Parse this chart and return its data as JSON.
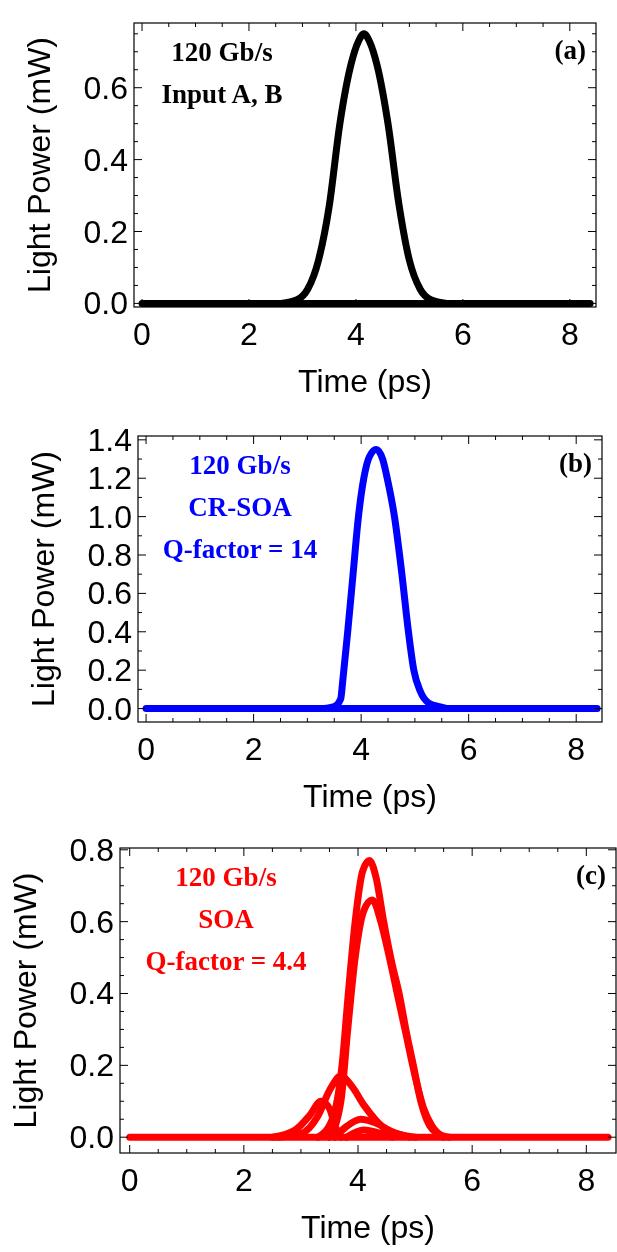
{
  "chart_data": [
    {
      "type": "line",
      "title": "(a)",
      "xlabel": "Time (ps)",
      "ylabel": "Light Power (mW)",
      "annotations": [
        "120 Gb/s",
        "Input A, B"
      ],
      "xlim": [
        -0.15,
        8.49
      ],
      "ylim": [
        -0.01,
        0.78
      ],
      "xticks": [
        0,
        {
          "value": 0.5,
          "label": null
        },
        {
          "value": 1,
          "label": null
        },
        {
          "value": 1.5,
          "label": null
        },
        2,
        {
          "value": 2.5,
          "label": null
        },
        {
          "value": 3,
          "label": null
        },
        {
          "value": 3.5,
          "label": null
        },
        4,
        {
          "value": 4.5,
          "label": null
        },
        {
          "value": 5,
          "label": null
        },
        {
          "value": 5.5,
          "label": null
        },
        6,
        {
          "value": 6.5,
          "label": null
        },
        {
          "value": 7,
          "label": null
        },
        {
          "value": 7.5,
          "label": null
        },
        8
      ],
      "yticks": [
        {
          "value": 0,
          "label": "0.0"
        },
        {
          "value": 0.05,
          "label": null
        },
        {
          "value": 0.1,
          "label": null
        },
        {
          "value": 0.15,
          "label": null
        },
        0.2,
        {
          "value": 0.25,
          "label": null
        },
        {
          "value": 0.3,
          "label": null
        },
        {
          "value": 0.35,
          "label": null
        },
        0.4,
        {
          "value": 0.45,
          "label": null
        },
        {
          "value": 0.5,
          "label": null
        },
        {
          "value": 0.55,
          "label": null
        },
        0.6,
        {
          "value": 0.65,
          "label": null
        },
        {
          "value": 0.7,
          "label": null
        },
        {
          "value": 0.75,
          "label": null
        }
      ],
      "series": [
        {
          "color": "#000000",
          "x": [
            0,
            8.38
          ],
          "values": [
            0,
            0
          ]
        },
        {
          "color": "#000000",
          "x": [
            2.6,
            2.9,
            3.1,
            3.3,
            3.5,
            3.7,
            3.9,
            4.05,
            4.15,
            4.25,
            4.4,
            4.6,
            4.8,
            5.0,
            5.2,
            5.4,
            5.7
          ],
          "values": [
            0,
            0.01,
            0.04,
            0.12,
            0.27,
            0.5,
            0.66,
            0.73,
            0.75,
            0.73,
            0.66,
            0.5,
            0.28,
            0.12,
            0.04,
            0.01,
            0
          ]
        }
      ]
    },
    {
      "type": "line",
      "title": "(b)",
      "xlabel": "Time (ps)",
      "ylabel": "Light Power (mW)",
      "annotations": [
        "120 Gb/s",
        "CR-SOA",
        "Q-factor = 14"
      ],
      "xlim": [
        -0.15,
        8.48
      ],
      "ylim": [
        -0.07,
        1.42
      ],
      "xticks": [
        0,
        {
          "value": 0.5,
          "label": null
        },
        {
          "value": 1,
          "label": null
        },
        {
          "value": 1.5,
          "label": null
        },
        2,
        {
          "value": 2.5,
          "label": null
        },
        {
          "value": 3,
          "label": null
        },
        {
          "value": 3.5,
          "label": null
        },
        4,
        {
          "value": 4.5,
          "label": null
        },
        {
          "value": 5,
          "label": null
        },
        {
          "value": 5.5,
          "label": null
        },
        6,
        {
          "value": 6.5,
          "label": null
        },
        {
          "value": 7,
          "label": null
        },
        {
          "value": 7.5,
          "label": null
        },
        8
      ],
      "yticks": [
        {
          "value": 0,
          "label": "0.0"
        },
        {
          "value": 0.1,
          "label": null
        },
        0.2,
        {
          "value": 0.3,
          "label": null
        },
        0.4,
        {
          "value": 0.5,
          "label": null
        },
        0.6,
        {
          "value": 0.7,
          "label": null
        },
        0.8,
        {
          "value": 0.9,
          "label": null
        },
        {
          "value": 1,
          "label": "1.0"
        },
        {
          "value": 1.1,
          "label": null
        },
        1.2,
        {
          "value": 1.3,
          "label": null
        },
        1.4
      ],
      "series": [
        {
          "color": "#0000ff",
          "x": [
            0,
            8.39
          ],
          "values": [
            0,
            0
          ]
        },
        {
          "color": "#0000ff",
          "x": [
            3.3,
            3.5,
            3.62,
            3.66,
            3.75,
            3.85,
            3.95,
            4.05,
            4.15,
            4.28,
            4.4,
            4.5,
            4.62,
            4.75,
            4.88,
            4.98,
            5.1,
            5.25,
            5.45,
            5.6
          ],
          "values": [
            0,
            0.01,
            0.05,
            0.15,
            0.4,
            0.7,
            1.0,
            1.2,
            1.31,
            1.35,
            1.3,
            1.18,
            1.0,
            0.72,
            0.4,
            0.2,
            0.09,
            0.03,
            0.01,
            0
          ]
        }
      ]
    },
    {
      "type": "line",
      "title": "(c)",
      "xlabel": "Time (ps)",
      "ylabel": "Light Power (mW)",
      "annotations": [
        "120 Gb/s",
        "SOA",
        "Q-factor = 4.4"
      ],
      "xlim": [
        -0.17,
        8.52
      ],
      "ylim": [
        -0.044,
        0.805
      ],
      "xticks": [
        0,
        {
          "value": 0.5,
          "label": null
        },
        {
          "value": 1,
          "label": null
        },
        {
          "value": 1.5,
          "label": null
        },
        2,
        {
          "value": 2.5,
          "label": null
        },
        {
          "value": 3,
          "label": null
        },
        {
          "value": 3.5,
          "label": null
        },
        4,
        {
          "value": 4.5,
          "label": null
        },
        {
          "value": 5,
          "label": null
        },
        {
          "value": 5.5,
          "label": null
        },
        6,
        {
          "value": 6.5,
          "label": null
        },
        {
          "value": 7,
          "label": null
        },
        {
          "value": 7.5,
          "label": null
        },
        8
      ],
      "yticks": [
        {
          "value": 0,
          "label": "0.0"
        },
        {
          "value": 0.05,
          "label": null
        },
        {
          "value": 0.1,
          "label": null
        },
        {
          "value": 0.15,
          "label": null
        },
        0.2,
        {
          "value": 0.25,
          "label": null
        },
        {
          "value": 0.3,
          "label": null
        },
        {
          "value": 0.35,
          "label": null
        },
        0.4,
        {
          "value": 0.45,
          "label": null
        },
        {
          "value": 0.5,
          "label": null
        },
        {
          "value": 0.55,
          "label": null
        },
        0.6,
        {
          "value": 0.65,
          "label": null
        },
        {
          "value": 0.7,
          "label": null
        },
        {
          "value": 0.75,
          "label": null
        },
        0.8
      ],
      "series": [
        {
          "color": "#ff0000",
          "x": [
            0,
            8.38
          ],
          "values": [
            0,
            0
          ]
        },
        {
          "color": "#ff0000",
          "x": [
            3.3,
            3.55,
            3.72,
            3.83,
            3.95,
            4.08,
            4.2,
            4.32,
            4.45,
            4.6,
            4.72,
            4.85,
            4.97,
            5.1,
            5.2,
            5.4,
            5.6
          ],
          "values": [
            0,
            0.05,
            0.2,
            0.4,
            0.6,
            0.74,
            0.77,
            0.72,
            0.6,
            0.48,
            0.4,
            0.29,
            0.2,
            0.1,
            0.05,
            0.01,
            0
          ]
        },
        {
          "color": "#ff0000",
          "x": [
            3.5,
            3.7,
            3.82,
            3.95,
            4.1,
            4.25,
            4.4,
            4.55,
            4.7,
            4.85,
            5.0,
            5.15,
            5.3,
            5.5
          ],
          "values": [
            0,
            0.1,
            0.3,
            0.5,
            0.63,
            0.66,
            0.6,
            0.5,
            0.39,
            0.28,
            0.17,
            0.08,
            0.03,
            0
          ]
        },
        {
          "color": "#ff0000",
          "x": [
            2.6,
            3.0,
            3.3,
            3.5,
            3.7,
            3.9,
            4.1,
            4.3,
            4.5,
            4.8,
            5.0
          ],
          "values": [
            0,
            0.01,
            0.06,
            0.13,
            0.17,
            0.14,
            0.09,
            0.05,
            0.02,
            0.005,
            0
          ]
        },
        {
          "color": "#ff0000",
          "x": [
            2.5,
            2.9,
            3.15,
            3.35,
            3.5,
            3.6,
            3.7
          ],
          "values": [
            0,
            0.02,
            0.06,
            0.1,
            0.08,
            0.03,
            0
          ]
        },
        {
          "color": "#ff0000",
          "x": [
            3.6,
            3.8,
            4.05,
            4.3,
            4.6,
            4.9
          ],
          "values": [
            0,
            0.03,
            0.05,
            0.04,
            0.015,
            0
          ]
        },
        {
          "color": "#ff0000",
          "x": [
            3.8,
            4.1,
            4.4,
            4.6
          ],
          "values": [
            0,
            0.02,
            0.01,
            0
          ]
        }
      ]
    }
  ]
}
